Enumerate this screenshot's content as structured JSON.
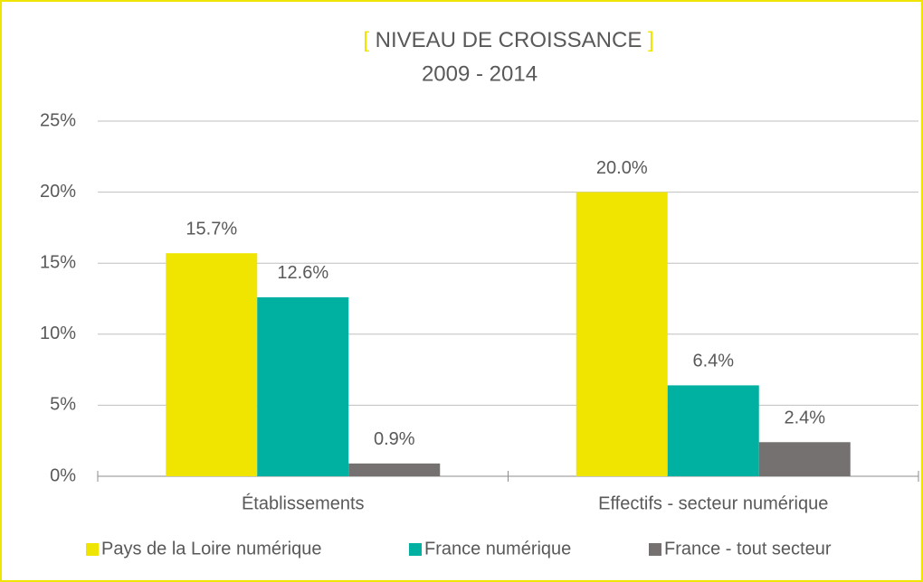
{
  "chart_data": {
    "type": "bar",
    "title_brackets": [
      "[",
      "]"
    ],
    "title": "NIVEAU DE CROISSANCE",
    "subtitle": "2009 - 2014",
    "categories": [
      "Établissements",
      "Effectifs - secteur numérique"
    ],
    "series": [
      {
        "name": "Pays de la Loire numérique",
        "color": "#f0e500",
        "values": [
          15.7,
          20.0
        ],
        "value_labels": [
          "15.7%",
          "20.0%"
        ]
      },
      {
        "name": "France numérique",
        "color": "#00b0a0",
        "values": [
          12.6,
          6.4
        ],
        "value_labels": [
          "12.6%",
          "6.4%"
        ]
      },
      {
        "name": "France - tout secteur",
        "color": "#767171",
        "values": [
          0.9,
          2.4
        ],
        "value_labels": [
          "0.9%",
          "2.4%"
        ]
      }
    ],
    "ylim": [
      0,
      25
    ],
    "yticks": [
      {
        "value": 0,
        "label": "0%"
      },
      {
        "value": 5,
        "label": "5%"
      },
      {
        "value": 10,
        "label": "10%"
      },
      {
        "value": 15,
        "label": "15%"
      },
      {
        "value": 20,
        "label": "20%"
      },
      {
        "value": 25,
        "label": "25%"
      }
    ],
    "grid": true,
    "legend": "bottom"
  }
}
